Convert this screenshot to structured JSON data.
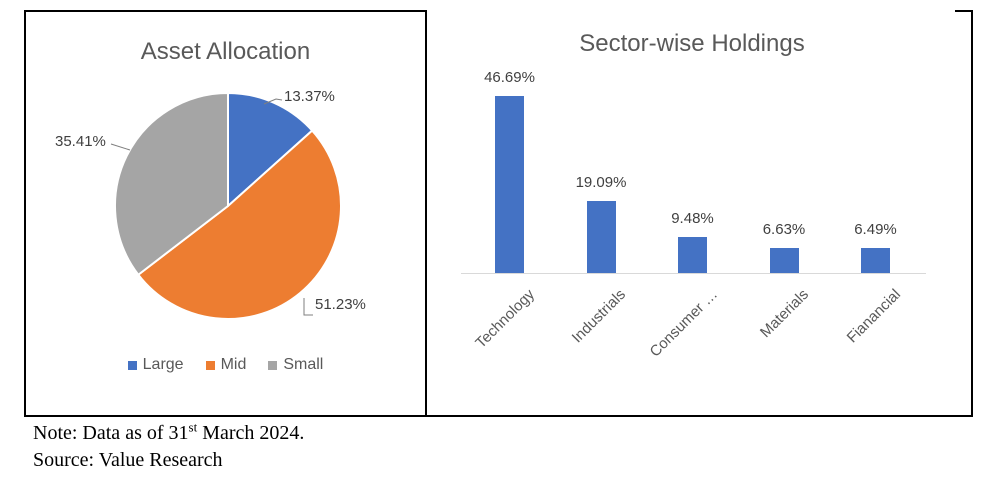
{
  "chart_data": [
    {
      "type": "pie",
      "title": "Asset Allocation",
      "categories": [
        "Large",
        "Mid",
        "Small"
      ],
      "values": [
        13.37,
        51.23,
        35.41
      ],
      "labels": [
        "13.37%",
        "51.23%",
        "35.41%"
      ],
      "colors": [
        "#4472C4",
        "#ED7D31",
        "#A5A5A5"
      ],
      "legend_position": "bottom",
      "legend_entries": [
        "Large",
        "Mid",
        "Small"
      ]
    },
    {
      "type": "bar",
      "title": "Sector-wise Holdings",
      "categories": [
        "Technology",
        "Industrials",
        "Consumer …",
        "Materials",
        "Fianancial"
      ],
      "values": [
        46.69,
        19.09,
        9.48,
        6.63,
        6.49
      ],
      "labels": [
        "46.69%",
        "19.09%",
        "9.48%",
        "6.63%",
        "6.49%"
      ],
      "bar_color": "#4472C4",
      "axis_color": "#D9D9D9",
      "ylim": [
        0,
        50
      ],
      "grid": false,
      "legend_position": "none"
    }
  ],
  "note": {
    "prefix": "Note: Data as of 31",
    "superscript": "st",
    "suffix": " March 2024."
  },
  "source": "Source: Value Research"
}
